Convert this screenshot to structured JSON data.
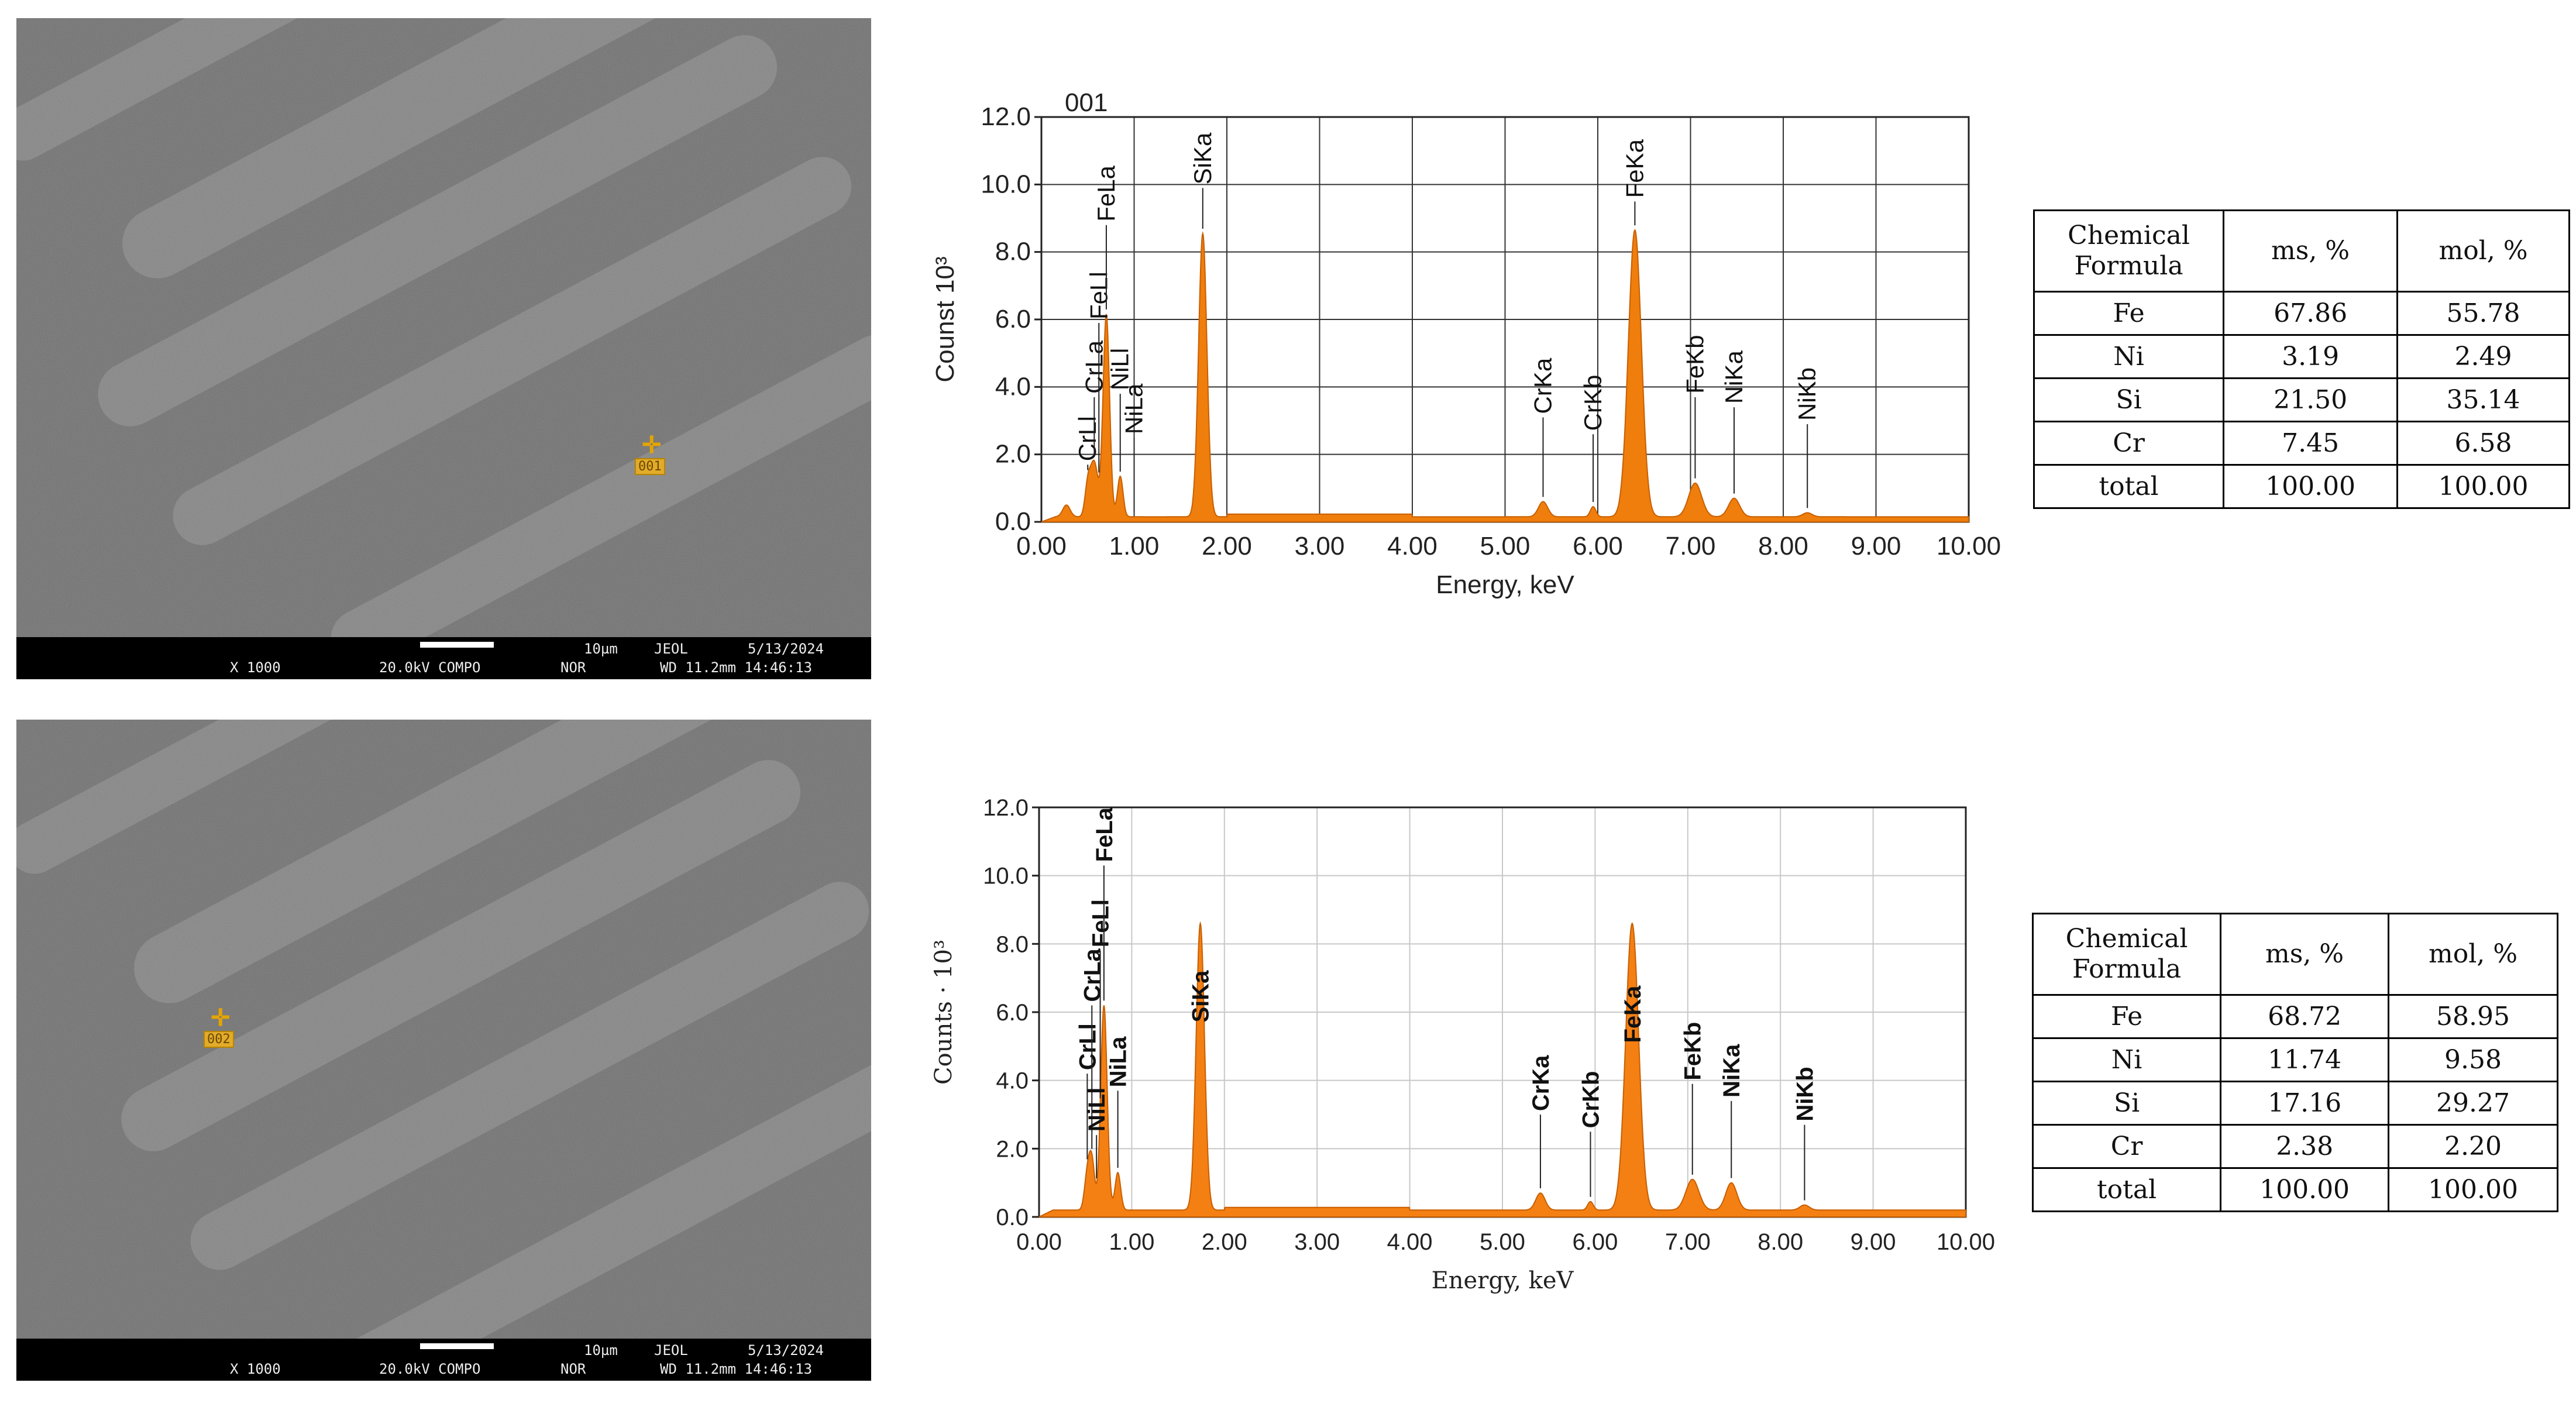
{
  "panels": [
    {
      "sem": {
        "magnification": "X 1000",
        "voltage": "20.0kV COMPO",
        "mode": "NOR",
        "scale": "10µm",
        "maker": "JEOL",
        "date": "5/13/2024",
        "wd_time": "WD 11.2mm 14:46:13",
        "point_label": "001"
      },
      "table": {
        "headers": [
          "Chemical Formula",
          "ms, %",
          "mol, %"
        ],
        "rows": [
          {
            "element": "Fe",
            "ms": "67.86",
            "mol": "55.78"
          },
          {
            "element": "Ni",
            "ms": "3.19",
            "mol": "2.49"
          },
          {
            "element": "Si",
            "ms": "21.50",
            "mol": "35.14"
          },
          {
            "element": "Cr",
            "ms": "7.45",
            "mol": "6.58"
          },
          {
            "element": "total",
            "ms": "100.00",
            "mol": "100.00"
          }
        ]
      }
    },
    {
      "sem": {
        "magnification": "X 1000",
        "voltage": "20.0kV COMPO",
        "mode": "NOR",
        "scale": "10µm",
        "maker": "JEOL",
        "date": "5/13/2024",
        "wd_time": "WD 11.2mm 14:46:13",
        "point_label": "002"
      },
      "table": {
        "headers": [
          "Chemical Formula",
          "ms, %",
          "mol, %"
        ],
        "rows": [
          {
            "element": "Fe",
            "ms": "68.72",
            "mol": "58.95"
          },
          {
            "element": "Ni",
            "ms": "11.74",
            "mol": "9.58"
          },
          {
            "element": "Si",
            "ms": "17.16",
            "mol": "29.27"
          },
          {
            "element": "Cr",
            "ms": "2.38",
            "mol": "2.20"
          },
          {
            "element": "total",
            "ms": "100.00",
            "mol": "100.00"
          }
        ]
      }
    }
  ],
  "chart_data": [
    {
      "type": "area",
      "title": "001",
      "xlabel": "Energy, keV",
      "ylabel": "Counst 10³",
      "xlim": [
        0,
        10
      ],
      "ylim": [
        0,
        12
      ],
      "x_ticks": [
        "0.00",
        "1.00",
        "2.00",
        "3.00",
        "4.00",
        "5.00",
        "6.00",
        "7.00",
        "8.00",
        "9.00",
        "10.00"
      ],
      "y_ticks": [
        "0.0",
        "2.0",
        "4.0",
        "6.0",
        "8.0",
        "10.0",
        "12.0"
      ],
      "color": "#f07e0c",
      "baseline": 0.15,
      "peaks": [
        {
          "x": 0.27,
          "h": 0.35,
          "w": 0.04
        },
        {
          "x": 0.5,
          "h": 0.9,
          "w": 0.03
        },
        {
          "x": 0.57,
          "h": 1.6,
          "w": 0.04
        },
        {
          "x": 0.7,
          "h": 6.0,
          "w": 0.035
        },
        {
          "x": 0.85,
          "h": 1.2,
          "w": 0.03
        },
        {
          "x": 1.74,
          "h": 8.4,
          "w": 0.045
        },
        {
          "x": 5.41,
          "h": 0.45,
          "w": 0.05
        },
        {
          "x": 5.95,
          "h": 0.3,
          "w": 0.03
        },
        {
          "x": 6.4,
          "h": 8.5,
          "w": 0.07
        },
        {
          "x": 7.05,
          "h": 1.0,
          "w": 0.07
        },
        {
          "x": 7.47,
          "h": 0.55,
          "w": 0.06
        },
        {
          "x": 8.26,
          "h": 0.12,
          "w": 0.05
        }
      ],
      "labels": [
        {
          "text": "CrLl",
          "x": 0.5,
          "y": 1.8
        },
        {
          "text": "CrLa",
          "x": 0.57,
          "y": 3.8
        },
        {
          "text": "FeLl",
          "x": 0.62,
          "y": 6.0
        },
        {
          "text": "FeLa",
          "x": 0.7,
          "y": 8.9
        },
        {
          "text": "NiLl",
          "x": 0.85,
          "y": 3.9
        },
        {
          "text": "NiLa",
          "x": 1.0,
          "y": 2.6
        },
        {
          "text": "SiKa",
          "x": 1.74,
          "y": 10.0
        },
        {
          "text": "CrKa",
          "x": 5.41,
          "y": 3.2
        },
        {
          "text": "CrKb",
          "x": 5.95,
          "y": 2.7
        },
        {
          "text": "FeKa",
          "x": 6.4,
          "y": 9.6
        },
        {
          "text": "FeKb",
          "x": 7.05,
          "y": 3.8
        },
        {
          "text": "NiKa",
          "x": 7.47,
          "y": 3.5
        },
        {
          "text": "NiKb",
          "x": 8.26,
          "y": 3.0
        }
      ]
    },
    {
      "type": "area",
      "title": "",
      "xlabel": "Energy, keV",
      "ylabel": "Counts · 10³",
      "xlim": [
        0,
        10
      ],
      "ylim": [
        0,
        12
      ],
      "x_ticks": [
        "0.00",
        "1.00",
        "2.00",
        "3.00",
        "4.00",
        "5.00",
        "6.00",
        "7.00",
        "8.00",
        "9.00",
        "10.00"
      ],
      "y_ticks": [
        "0.0",
        "2.0",
        "4.0",
        "6.0",
        "8.0",
        "10.0",
        "12.0"
      ],
      "color": "#f48014",
      "baseline": 0.2,
      "peaks": [
        {
          "x": 0.52,
          "h": 1.0,
          "w": 0.03
        },
        {
          "x": 0.57,
          "h": 1.4,
          "w": 0.03
        },
        {
          "x": 0.7,
          "h": 6.0,
          "w": 0.035
        },
        {
          "x": 0.85,
          "h": 1.1,
          "w": 0.03
        },
        {
          "x": 1.74,
          "h": 8.4,
          "w": 0.045
        },
        {
          "x": 5.41,
          "h": 0.5,
          "w": 0.05
        },
        {
          "x": 5.95,
          "h": 0.25,
          "w": 0.03
        },
        {
          "x": 6.4,
          "h": 8.4,
          "w": 0.07
        },
        {
          "x": 7.05,
          "h": 0.9,
          "w": 0.07
        },
        {
          "x": 7.47,
          "h": 0.8,
          "w": 0.06
        },
        {
          "x": 8.26,
          "h": 0.15,
          "w": 0.05
        }
      ],
      "labels": [
        {
          "text": "CrLl",
          "x": 0.52,
          "y": 4.3
        },
        {
          "text": "CrLa",
          "x": 0.57,
          "y": 6.3
        },
        {
          "text": "FeLl",
          "x": 0.66,
          "y": 7.9
        },
        {
          "text": "FeLa",
          "x": 0.7,
          "y": 10.4
        },
        {
          "text": "NiLl",
          "x": 0.62,
          "y": 2.5
        },
        {
          "text": "NiLa",
          "x": 0.85,
          "y": 3.8
        },
        {
          "text": "SiKa",
          "x": 1.74,
          "y": 5.7
        },
        {
          "text": "CrKa",
          "x": 5.41,
          "y": 3.1
        },
        {
          "text": "CrKb",
          "x": 5.95,
          "y": 2.6
        },
        {
          "text": "FeKa",
          "x": 6.4,
          "y": 5.1
        },
        {
          "text": "FeKb",
          "x": 7.05,
          "y": 4.0
        },
        {
          "text": "NiKa",
          "x": 7.47,
          "y": 3.5
        },
        {
          "text": "NiKb",
          "x": 8.26,
          "y": 2.8
        }
      ]
    }
  ]
}
